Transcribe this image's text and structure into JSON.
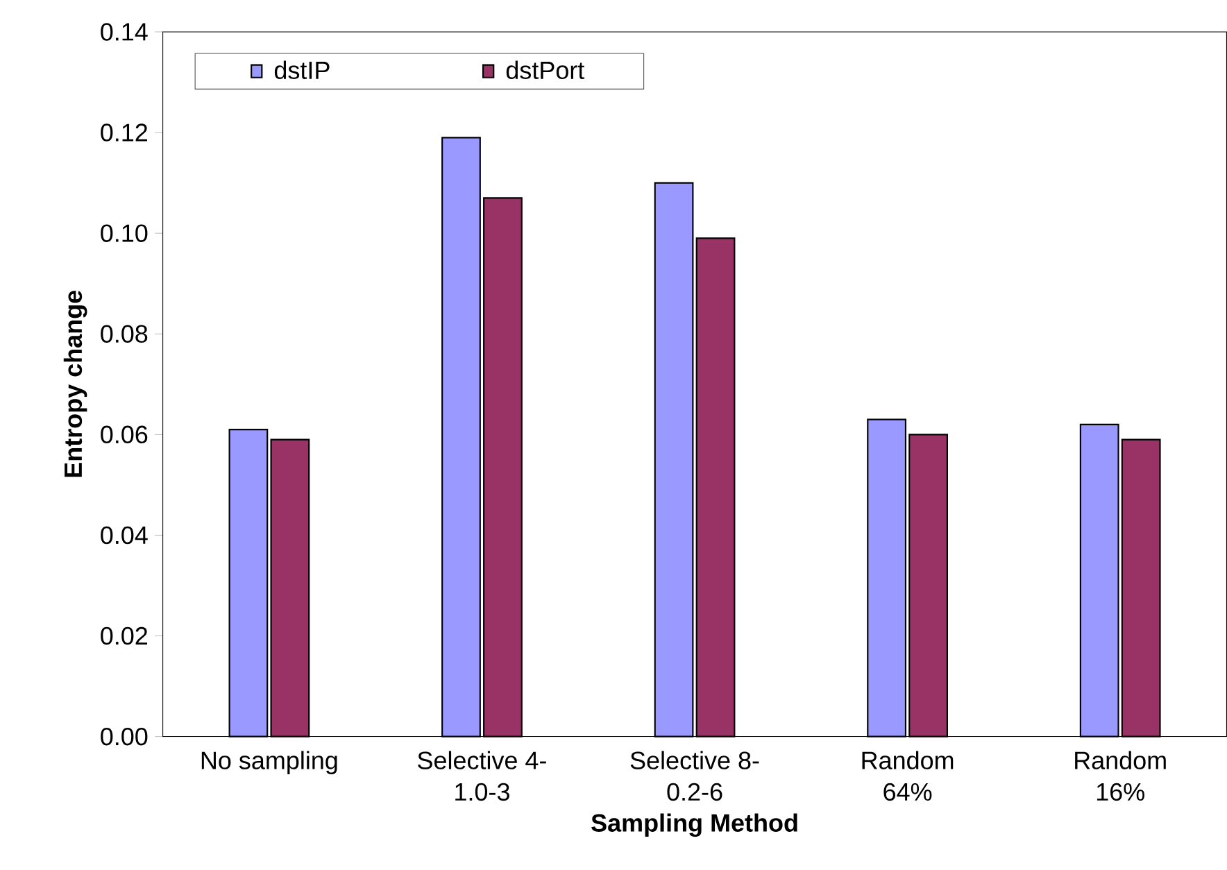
{
  "chart_data": {
    "type": "bar",
    "xlabel": "Sampling Method",
    "ylabel": "Entropy change",
    "categories": [
      "No sampling",
      "Selective 4-\n1.0-3",
      "Selective 8-\n0.2-6",
      "Random\n64%",
      "Random\n16%"
    ],
    "series": [
      {
        "name": "dstIP",
        "color": "#9999ff",
        "values": [
          0.061,
          0.119,
          0.11,
          0.063,
          0.062
        ]
      },
      {
        "name": "dstPort",
        "color": "#993366",
        "values": [
          0.059,
          0.107,
          0.099,
          0.06,
          0.059
        ]
      }
    ],
    "ylim": [
      0,
      0.14
    ],
    "yticks": [
      {
        "value": 0,
        "label": "0.00"
      },
      {
        "value": 0.02,
        "label": "0.02"
      },
      {
        "value": 0.04,
        "label": "0.04"
      },
      {
        "value": 0.06,
        "label": "0.06"
      },
      {
        "value": 0.08,
        "label": "0.08"
      },
      {
        "value": 0.1,
        "label": "0.10"
      },
      {
        "value": 0.12,
        "label": "0.12"
      },
      {
        "value": 0.14,
        "label": "0.14"
      }
    ],
    "legend": "top left",
    "grid": false
  }
}
